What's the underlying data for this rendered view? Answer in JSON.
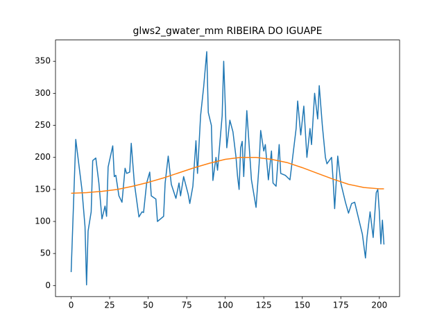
{
  "chart_data": {
    "type": "line",
    "title": "glws2_gwater_mm RIBEIRA DO IGUAPE",
    "xlim": [
      -10.15,
      213.15
    ],
    "xticks": [
      0,
      25,
      50,
      75,
      100,
      125,
      150,
      175,
      200
    ],
    "ylim": [
      -17.2,
      383.2
    ],
    "yticks": [
      0,
      50,
      100,
      150,
      200,
      250,
      300,
      350
    ],
    "series": [
      {
        "color": "#1f77b4",
        "x": [
          0,
          3,
          7,
          9,
          10,
          11,
          13,
          14,
          16,
          18,
          20,
          22,
          23,
          24,
          27,
          28,
          29,
          31,
          33,
          35,
          36,
          38,
          39,
          41,
          44,
          46,
          47,
          49,
          51,
          52,
          55,
          56,
          60,
          61,
          63,
          65,
          68,
          70,
          71,
          73,
          76,
          77,
          79,
          81,
          82,
          84,
          86,
          88,
          89,
          91,
          92,
          94,
          95,
          98,
          99,
          101,
          103,
          105,
          107,
          108,
          109,
          110,
          111,
          112,
          114,
          117,
          120,
          122,
          123,
          125,
          126,
          128,
          130,
          131,
          133,
          135,
          136,
          139,
          142,
          146,
          147,
          149,
          151,
          153,
          155,
          156,
          158,
          160,
          161,
          163,
          165,
          166,
          169,
          170,
          171,
          173,
          175,
          178,
          180,
          182,
          184,
          186,
          189,
          191,
          192,
          194,
          196,
          198,
          199,
          200,
          201,
          202,
          203
        ],
        "values": [
          21,
          228,
          150,
          92,
          1,
          85,
          115,
          195,
          199,
          160,
          104,
          124,
          108,
          185,
          218,
          170,
          172,
          140,
          130,
          183,
          175,
          177,
          222,
          160,
          107,
          115,
          114,
          160,
          177,
          140,
          135,
          100,
          108,
          160,
          202,
          158,
          136,
          160,
          140,
          170,
          142,
          128,
          155,
          226,
          175,
          265,
          310,
          365,
          270,
          250,
          164,
          200,
          180,
          265,
          350,
          215,
          258,
          240,
          200,
          170,
          150,
          215,
          225,
          170,
          273,
          165,
          122,
          190,
          242,
          210,
          220,
          165,
          210,
          160,
          155,
          220,
          175,
          172,
          165,
          245,
          288,
          235,
          280,
          200,
          245,
          220,
          300,
          260,
          312,
          250,
          200,
          190,
          200,
          165,
          120,
          202,
          160,
          130,
          113,
          128,
          130,
          110,
          80,
          43,
          75,
          115,
          75,
          145,
          150,
          115,
          65,
          102,
          64
        ]
      },
      {
        "color": "#ff7f0e",
        "x": [
          0,
          10,
          20,
          30,
          40,
          50,
          60,
          70,
          80,
          90,
          100,
          110,
          120,
          130,
          140,
          150,
          160,
          170,
          180,
          190,
          200,
          203
        ],
        "values": [
          144,
          145,
          147,
          150,
          155,
          161,
          168,
          176,
          184,
          191,
          197,
          200,
          200,
          197,
          192,
          184,
          175,
          166,
          158,
          153,
          151,
          151
        ]
      }
    ]
  }
}
